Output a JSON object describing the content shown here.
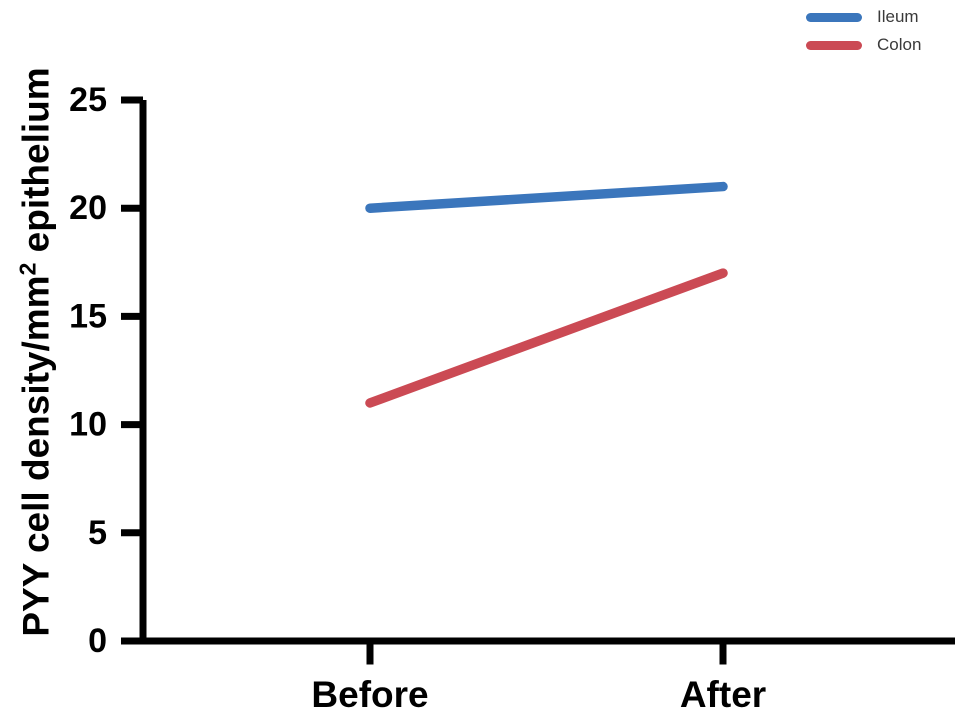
{
  "chart_data": {
    "type": "line",
    "categories": [
      "Before",
      "After"
    ],
    "series": [
      {
        "name": "Ileum",
        "color": "#3B76BC",
        "values": [
          20,
          21
        ]
      },
      {
        "name": "Colon",
        "color": "#CB4A54",
        "values": [
          11,
          17
        ]
      }
    ],
    "ylabel_main": "PYY cell density/mm",
    "ylabel_sup": "2",
    "ylabel_rest": " epithelium",
    "xlabel": "",
    "title": "",
    "yticks": [
      0,
      5,
      10,
      15,
      20,
      25
    ],
    "ylim": [
      0,
      25
    ],
    "grid": false,
    "legend_position": "top-right",
    "axis_color": "#000000",
    "tick_label_color": "#000000"
  },
  "legend": {
    "items": [
      {
        "label": "Ileum",
        "color": "#3B76BC"
      },
      {
        "label": "Colon",
        "color": "#CB4A54"
      }
    ]
  }
}
